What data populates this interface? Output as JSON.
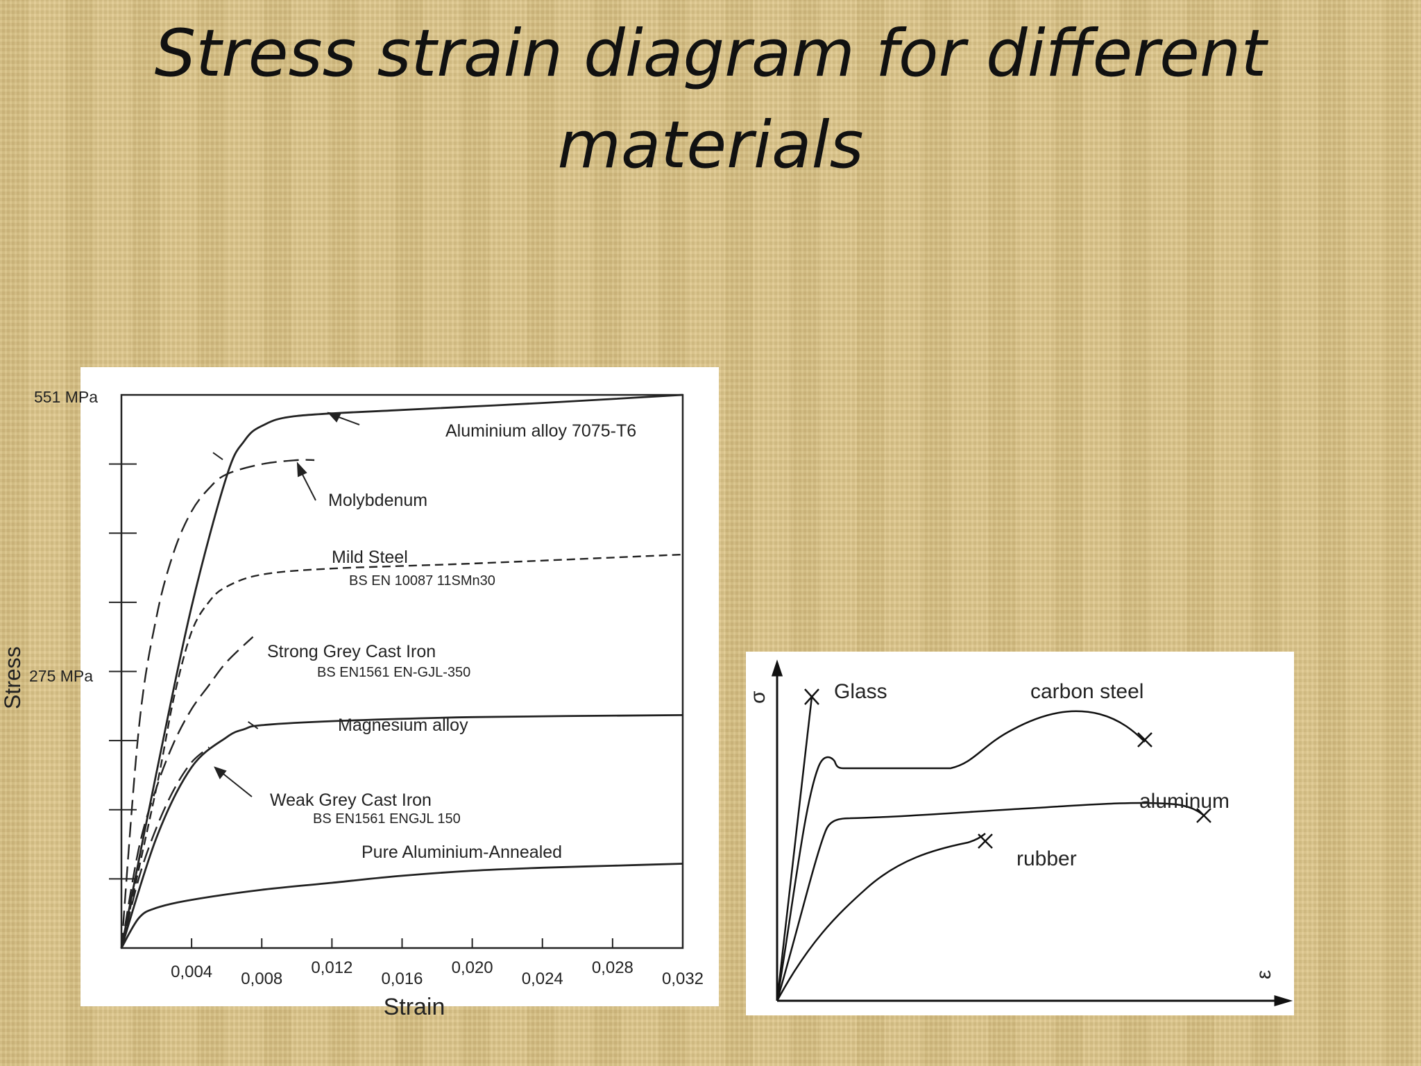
{
  "slide": {
    "title_line1": "Stress strain diagram for different",
    "title_line2": "materials"
  },
  "left_chart_labels": {
    "y_top": "551 MPa",
    "y_mid": "275 MPa",
    "y_axis": "Stress",
    "x_axis": "Strain",
    "x_ticks": [
      "0,004",
      "0,008",
      "0,012",
      "0,016",
      "0,020",
      "0,024",
      "0,028",
      "0,032"
    ],
    "curves": {
      "al7075": "Aluminium alloy 7075-T6",
      "moly": "Molybdenum",
      "mild_steel": "Mild Steel",
      "mild_steel_sub": "BS EN 10087 11SMn30",
      "strong_ci": "Strong Grey Cast Iron",
      "strong_ci_sub": "BS EN1561 EN-GJL-350",
      "magnesium": "Magnesium alloy",
      "weak_ci": "Weak Grey Cast Iron",
      "weak_ci_sub": "BS EN1561 ENGJL 150",
      "pure_al": "Pure Aluminium-Annealed"
    }
  },
  "right_chart_labels": {
    "y_axis": "σ",
    "x_axis": "ε",
    "glass": "Glass",
    "carbon_steel": "carbon steel",
    "aluminum": "aluminum",
    "rubber": "rubber"
  },
  "chart_data": [
    {
      "type": "line",
      "xlabel": "Strain",
      "ylabel": "Stress",
      "xlim": [
        0,
        0.032
      ],
      "ylim": [
        0,
        551
      ],
      "y_tick_labels": {
        "275": "275 MPa",
        "551": "551 MPa"
      },
      "series": [
        {
          "name": "Aluminium alloy 7075-T6",
          "style": "solid",
          "x": [
            0,
            0.002,
            0.004,
            0.006,
            0.007,
            0.008,
            0.01,
            0.016,
            0.024,
            0.032
          ],
          "y": [
            0,
            175,
            340,
            470,
            505,
            520,
            530,
            536,
            543,
            551
          ]
        },
        {
          "name": "Molybdenum",
          "style": "dashed",
          "x": [
            0,
            0.001,
            0.002,
            0.003,
            0.004,
            0.005,
            0.006,
            0.008,
            0.01,
            0.011
          ],
          "y": [
            0,
            220,
            330,
            395,
            435,
            458,
            472,
            482,
            486,
            486
          ]
        },
        {
          "name": "Mild Steel",
          "style": "dashed",
          "x": [
            0,
            0.002,
            0.003,
            0.004,
            0.005,
            0.006,
            0.008,
            0.012,
            0.02,
            0.032
          ],
          "y": [
            0,
            160,
            250,
            315,
            345,
            360,
            372,
            378,
            383,
            392
          ]
        },
        {
          "name": "Strong Grey Cast Iron",
          "style": "dashed",
          "x": [
            0,
            0.001,
            0.002,
            0.003,
            0.004,
            0.005,
            0.006,
            0.0075
          ],
          "y": [
            0,
            100,
            160,
            205,
            238,
            262,
            285,
            310
          ]
        },
        {
          "name": "Magnesium alloy",
          "style": "solid",
          "x": [
            0,
            0.002,
            0.004,
            0.006,
            0.007,
            0.008,
            0.012,
            0.02,
            0.032
          ],
          "y": [
            0,
            110,
            180,
            210,
            218,
            222,
            226,
            230,
            232
          ]
        },
        {
          "name": "Weak Grey Cast Iron",
          "style": "dashed",
          "x": [
            0,
            0.001,
            0.002,
            0.003,
            0.004,
            0.005
          ],
          "y": [
            0,
            70,
            120,
            158,
            185,
            200
          ]
        },
        {
          "name": "Pure Aluminium-Annealed",
          "style": "solid",
          "x": [
            0,
            0.001,
            0.002,
            0.004,
            0.008,
            0.012,
            0.016,
            0.02,
            0.024,
            0.028,
            0.032
          ],
          "y": [
            0,
            30,
            40,
            48,
            58,
            65,
            72,
            77,
            80,
            82,
            84
          ]
        }
      ]
    },
    {
      "type": "line",
      "xlabel": "ε",
      "ylabel": "σ",
      "series": [
        {
          "name": "Glass"
        },
        {
          "name": "carbon steel"
        },
        {
          "name": "aluminum"
        },
        {
          "name": "rubber"
        }
      ]
    }
  ]
}
